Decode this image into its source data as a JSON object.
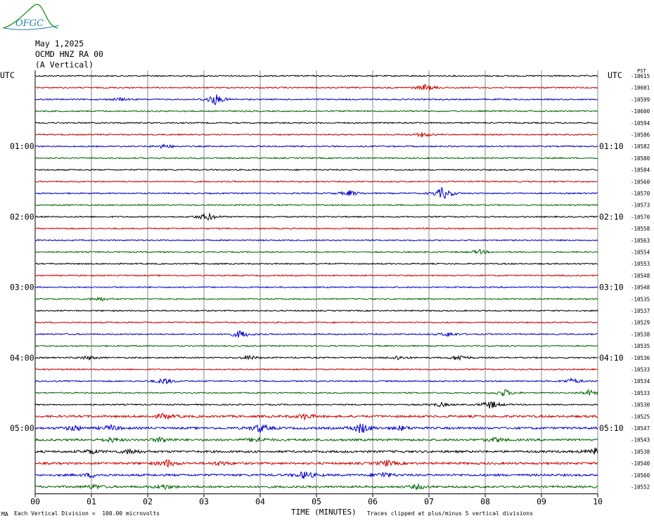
{
  "logo": {
    "text": "OFGC",
    "name": "ofgc-logo"
  },
  "header": {
    "date": "May 1,2025",
    "station": "OCMD HNZ RA 00",
    "component": "(A Vertical)"
  },
  "left_axis_title": "UTC",
  "right_axis_title": "UTC",
  "right_corner_label": "PST",
  "colors": {
    "black": "#000000",
    "red": "#cc0000",
    "blue": "#0000cc",
    "green": "#006600",
    "grid": "#888888"
  },
  "chart_data": {
    "type": "line",
    "xlabel": "TIME (MINUTES)",
    "x_ticks": [
      "00",
      "01",
      "02",
      "03",
      "04",
      "05",
      "06",
      "07",
      "08",
      "09",
      "10"
    ],
    "xlim": [
      0,
      10
    ],
    "rows": 36,
    "color_cycle": [
      "black",
      "red",
      "blue",
      "green"
    ],
    "left_hour_labels": [
      {
        "row": 6,
        "text": "01:00"
      },
      {
        "row": 12,
        "text": "02:00"
      },
      {
        "row": 18,
        "text": "03:00"
      },
      {
        "row": 24,
        "text": "04:00"
      },
      {
        "row": 30,
        "text": "05:00"
      }
    ],
    "right_hour_labels": [
      {
        "row": 6,
        "text": "01:10"
      },
      {
        "row": 12,
        "text": "02:10"
      },
      {
        "row": 18,
        "text": "03:10"
      },
      {
        "row": 24,
        "text": "04:10"
      },
      {
        "row": 30,
        "text": "05:10"
      }
    ],
    "trace_offsets": [
      "-10615",
      "-10601",
      "-10599",
      "-10600",
      "-10594",
      "-10586",
      "-10582",
      "-10580",
      "-10584",
      "-10560",
      "-10570",
      "-10573",
      "-10570",
      "-10558",
      "-10563",
      "-10554",
      "-10553",
      "-10548",
      "-10548",
      "-10535",
      "-10537",
      "-10529",
      "-10538",
      "-10535",
      "-10536",
      "-10533",
      "-10534",
      "-10533",
      "-10530",
      "-10525",
      "-10547",
      "-10543",
      "-10538",
      "-10540",
      "-10560",
      "-10552"
    ],
    "events": [
      {
        "row": 1,
        "minute": 6.95,
        "amp": 5
      },
      {
        "row": 2,
        "minute": 3.2,
        "amp": 8
      },
      {
        "row": 2,
        "minute": 1.5,
        "amp": 2
      },
      {
        "row": 5,
        "minute": 6.9,
        "amp": 3
      },
      {
        "row": 6,
        "minute": 2.3,
        "amp": 3
      },
      {
        "row": 10,
        "minute": 5.6,
        "amp": 4
      },
      {
        "row": 10,
        "minute": 7.25,
        "amp": 9
      },
      {
        "row": 12,
        "minute": 3.05,
        "amp": 6
      },
      {
        "row": 15,
        "minute": 7.9,
        "amp": 3
      },
      {
        "row": 19,
        "minute": 1.15,
        "amp": 3
      },
      {
        "row": 22,
        "minute": 3.65,
        "amp": 6
      },
      {
        "row": 22,
        "minute": 7.35,
        "amp": 3
      },
      {
        "row": 24,
        "minute": 0.95,
        "amp": 3
      },
      {
        "row": 24,
        "minute": 3.8,
        "amp": 3
      },
      {
        "row": 24,
        "minute": 6.45,
        "amp": 3
      },
      {
        "row": 24,
        "minute": 7.55,
        "amp": 4
      },
      {
        "row": 26,
        "minute": 2.3,
        "amp": 5
      },
      {
        "row": 26,
        "minute": 9.55,
        "amp": 4
      },
      {
        "row": 27,
        "minute": 8.35,
        "amp": 5
      },
      {
        "row": 27,
        "minute": 9.85,
        "amp": 4
      },
      {
        "row": 28,
        "minute": 8.1,
        "amp": 6
      },
      {
        "row": 28,
        "minute": 7.2,
        "amp": 3
      },
      {
        "row": 29,
        "minute": 2.3,
        "amp": 4
      },
      {
        "row": 29,
        "minute": 4.8,
        "amp": 4
      },
      {
        "row": 30,
        "minute": 0.7,
        "amp": 4
      },
      {
        "row": 30,
        "minute": 1.35,
        "amp": 4
      },
      {
        "row": 30,
        "minute": 4.0,
        "amp": 6
      },
      {
        "row": 30,
        "minute": 5.8,
        "amp": 8
      },
      {
        "row": 30,
        "minute": 6.5,
        "amp": 3
      },
      {
        "row": 31,
        "minute": 1.35,
        "amp": 3
      },
      {
        "row": 31,
        "minute": 2.25,
        "amp": 4
      },
      {
        "row": 31,
        "minute": 3.95,
        "amp": 4
      },
      {
        "row": 31,
        "minute": 8.2,
        "amp": 3
      },
      {
        "row": 32,
        "minute": 1.0,
        "amp": 3
      },
      {
        "row": 32,
        "minute": 1.7,
        "amp": 4
      },
      {
        "row": 32,
        "minute": 9.95,
        "amp": 4
      },
      {
        "row": 33,
        "minute": 2.35,
        "amp": 5
      },
      {
        "row": 33,
        "minute": 3.3,
        "amp": 3
      },
      {
        "row": 33,
        "minute": 6.25,
        "amp": 4
      },
      {
        "row": 34,
        "minute": 4.8,
        "amp": 6
      },
      {
        "row": 34,
        "minute": 6.2,
        "amp": 4
      },
      {
        "row": 34,
        "minute": 1.0,
        "amp": 3
      },
      {
        "row": 35,
        "minute": 1.05,
        "amp": 3
      },
      {
        "row": 35,
        "minute": 2.3,
        "amp": 3
      },
      {
        "row": 35,
        "minute": 6.8,
        "amp": 3
      }
    ]
  },
  "footer": {
    "scale_note": "Each Vertical Division =  100.00 microvolts",
    "clip_note": "Traces clipped at plus/minus 5 vertical divisions",
    "corner_mark": "MA"
  }
}
